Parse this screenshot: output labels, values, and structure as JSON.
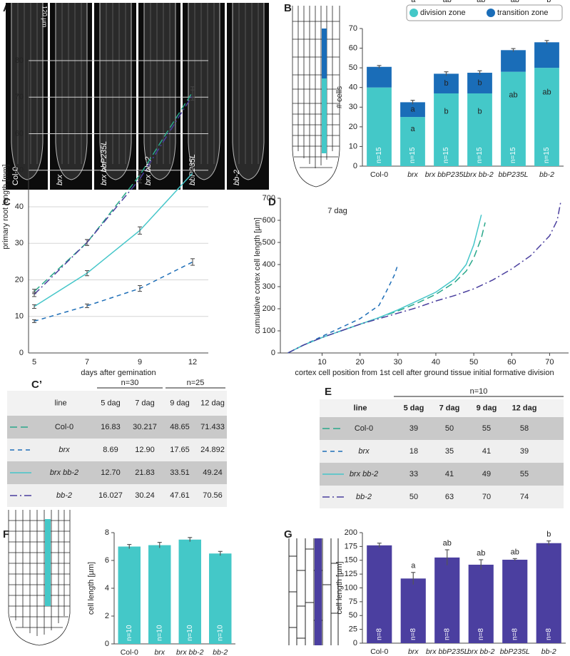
{
  "panel_labels": [
    "A",
    "B",
    "C",
    "D",
    "C’",
    "E",
    "F",
    "G"
  ],
  "micrographs": {
    "scale": "120 µm",
    "labels": [
      "Col-0",
      "brx",
      "brx bbP235L",
      "brx bb-2",
      "bbP235L",
      "bb-2"
    ]
  },
  "chart_data": [
    {
      "type": "bar",
      "stacked": true,
      "categories": [
        "Col-0",
        "brx",
        "brx bbP235L",
        "brx bb-2",
        "bbP235L",
        "bb-2"
      ],
      "series": [
        {
          "name": "division zone",
          "color": "#44c8c8",
          "values": [
            40,
            25,
            37,
            37,
            48,
            50
          ],
          "letters": [
            null,
            "a",
            "b",
            "b",
            "ab",
            "ab"
          ]
        },
        {
          "name": "transition zone",
          "color": "#1a6db8",
          "values": [
            10.5,
            7.5,
            10,
            10.5,
            11,
            13
          ],
          "errors": [
            0.7,
            1,
            1,
            1,
            0.8,
            0.9
          ],
          "letters": [
            null,
            "a",
            "b",
            "b",
            null,
            null
          ]
        }
      ],
      "n_labels": [
        "n=15",
        "n=15",
        "n=15",
        "n=15",
        "n=15",
        "n=15"
      ],
      "ylabel": "# cells",
      "ylim": [
        0,
        70
      ],
      "yticks": [
        0,
        10,
        20,
        30,
        40,
        50,
        60,
        70
      ]
    },
    {
      "type": "line",
      "categories": [
        "5",
        "7",
        "9",
        "12"
      ],
      "xlabel": "days after gemination",
      "ylabel": "primary root length  [mm]",
      "ylim": [
        0,
        80
      ],
      "yticks": [
        0,
        10,
        20,
        30,
        40,
        50,
        60,
        70,
        80
      ],
      "grid": true,
      "series": [
        {
          "color": "#2aa88a",
          "dash": "10 5",
          "values": [
            16.83,
            30.217,
            48.65,
            71.433
          ],
          "errors": [
            0.6,
            0.8,
            1.2,
            1.4
          ]
        },
        {
          "color": "#1f6fb8",
          "dash": "6 5",
          "values": [
            8.69,
            12.9,
            17.65,
            24.892
          ],
          "errors": [
            0.4,
            0.5,
            0.8,
            0.9
          ]
        },
        {
          "color": "#45c6c9",
          "dash": "none",
          "values": [
            12.7,
            21.83,
            33.51,
            49.24
          ],
          "errors": [
            0.5,
            0.7,
            1,
            1.3
          ]
        },
        {
          "color": "#4a3f9e",
          "dash": "10 4 2 4",
          "values": [
            16.027,
            30.24,
            47.61,
            70.56
          ],
          "errors": [
            0.6,
            0.8,
            1.1,
            1.4
          ]
        }
      ]
    },
    {
      "type": "line",
      "title": "7 dag",
      "xlabel": "cortex cell position from 1st cell after  ground tissue initial formative division",
      "ylabel": "cumulative cortex cell length  [µm]",
      "xlim": [
        -1,
        75
      ],
      "xticks": [
        10,
        20,
        30,
        40,
        50,
        60,
        70
      ],
      "ylim": [
        0,
        700
      ],
      "yticks": [
        0,
        100,
        200,
        300,
        400,
        500,
        600,
        700
      ],
      "series": [
        {
          "color": "#2aa88a",
          "dash": "10 5",
          "x": [
            1,
            5,
            10,
            15,
            20,
            25,
            30,
            35,
            40,
            45,
            48,
            50,
            52,
            53
          ],
          "values": [
            0,
            35,
            70,
            100,
            130,
            160,
            190,
            225,
            265,
            320,
            370,
            430,
            520,
            590
          ]
        },
        {
          "color": "#1f6fb8",
          "dash": "6 5",
          "x": [
            1,
            5,
            10,
            15,
            20,
            25,
            27,
            29,
            30
          ],
          "values": [
            0,
            35,
            75,
            115,
            155,
            215,
            280,
            350,
            400
          ]
        },
        {
          "color": "#45c6c9",
          "dash": "none",
          "x": [
            1,
            5,
            10,
            15,
            20,
            25,
            30,
            35,
            40,
            45,
            48,
            50,
            52
          ],
          "values": [
            0,
            35,
            70,
            100,
            130,
            160,
            195,
            235,
            275,
            335,
            400,
            490,
            625
          ]
        },
        {
          "color": "#4a3f9e",
          "dash": "10 4 2 4",
          "x": [
            1,
            5,
            10,
            15,
            20,
            25,
            30,
            35,
            40,
            45,
            50,
            55,
            60,
            65,
            70,
            72,
            73
          ],
          "values": [
            0,
            35,
            70,
            100,
            130,
            155,
            180,
            205,
            235,
            260,
            290,
            330,
            380,
            440,
            530,
            600,
            690
          ]
        }
      ]
    },
    {
      "type": "bar",
      "categories": [
        "Col-0",
        "brx",
        "brx bb-2",
        "bb-2"
      ],
      "values": [
        7.0,
        7.1,
        7.5,
        6.5
      ],
      "errors": [
        0.15,
        0.2,
        0.15,
        0.15
      ],
      "color": "#44c8c8",
      "n_labels": [
        "n=10",
        "n=10",
        "n=10",
        "n=10"
      ],
      "ylabel": "cell length  [µm]",
      "ylim": [
        0,
        8
      ],
      "yticks": [
        0,
        2,
        4,
        6,
        8
      ]
    },
    {
      "type": "bar",
      "categories": [
        "Col-0",
        "brx",
        "brx bbP235L",
        "brx bb-2",
        "bbP235L",
        "bb-2"
      ],
      "values": [
        177,
        117,
        155,
        142,
        151,
        181
      ],
      "errors": [
        4,
        11,
        14,
        9,
        2,
        4
      ],
      "letters": [
        null,
        "a",
        "ab",
        "ab",
        "ab",
        "b"
      ],
      "color": "#4b3fa0",
      "n_labels": [
        "n=8",
        "n=8",
        "n=8",
        "n=8",
        "n=8",
        "n=8"
      ],
      "ylabel": "cell length  [µm]",
      "ylim": [
        0,
        200
      ],
      "yticks": [
        0,
        25,
        50,
        75,
        100,
        125,
        150,
        175,
        200
      ]
    }
  ],
  "table_c": {
    "groups": [
      "n=30",
      "n=25"
    ],
    "columns": [
      "line",
      "5 dag",
      "7 dag",
      "9 dag",
      "12 dag"
    ],
    "rows": [
      [
        "Col-0",
        "16.83",
        "30.217",
        "48.65",
        "71.433"
      ],
      [
        "brx",
        "8.69",
        "12.90",
        "17.65",
        "24.892"
      ],
      [
        "brx bb-2",
        "12.70",
        "21.83",
        "33.51",
        "49.24"
      ],
      [
        "bb-2",
        "16.027",
        "30.24",
        "47.61",
        "70.56"
      ]
    ]
  },
  "table_e": {
    "groups": [
      "n=10"
    ],
    "columns": [
      "line",
      "5 dag",
      "7 dag",
      "9 dag",
      "12 dag"
    ],
    "rows": [
      [
        "Col-0",
        "39",
        "50",
        "55",
        "58"
      ],
      [
        "brx",
        "18",
        "35",
        "41",
        "39"
      ],
      [
        "brx bb-2",
        "33",
        "41",
        "49",
        "55"
      ],
      [
        "bb-2",
        "50",
        "63",
        "70",
        "74"
      ]
    ]
  }
}
